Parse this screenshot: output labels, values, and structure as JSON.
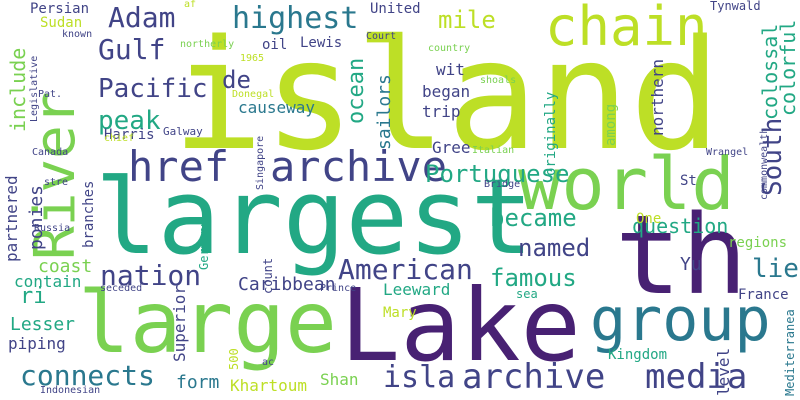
{
  "palette": {
    "lime": "#bddf26",
    "green": "#7ad151",
    "teal": "#22a884",
    "blue": "#2a788e",
    "indigo": "#414487",
    "purple": "#482173",
    "dark": "#440154"
  },
  "words": [
    "island",
    "largest",
    "large",
    "Lake",
    "th",
    "world",
    "chain",
    "group",
    "River",
    "archive",
    "href",
    "archive",
    "media",
    "isla",
    "connects",
    "American",
    "nation",
    "highest",
    "Adam",
    "Gulf",
    "Pacific",
    "peak",
    "de",
    "mile",
    "Portuguese",
    "became",
    "named",
    "famous",
    "South",
    "colossal",
    "colorful",
    "question",
    "ocean",
    "sailors",
    "include",
    "partnered",
    "ponies",
    "Caribbean",
    "Leeward",
    "Lesser",
    "piping",
    "coast",
    "contain",
    "form",
    "Khartoum",
    "Shan",
    "Mary",
    "Superior",
    "Kingdom",
    "France",
    "regions",
    "lie",
    "Yu",
    "level",
    "Mediterranea",
    "causeway",
    "trip",
    "began",
    "wit",
    "Gree",
    "among",
    "originally",
    "northern",
    "Persian",
    "Sudan",
    "United",
    "Court",
    "country",
    "Tynwald",
    "known",
    "af",
    "northerly",
    "oil",
    "Lewis",
    "Harris",
    "Galway",
    "Donegal",
    "1965",
    "ac",
    "Singapore",
    "chief",
    "Canada",
    "stre",
    "Russia",
    "branches",
    "Germany",
    "count",
    "seceded",
    "Prince",
    "Indonesian",
    "500",
    "Italian",
    "Bridge",
    "Wrangel",
    "St",
    "One",
    "sea",
    "shoals",
    "commonwealth",
    "Pat.",
    "Legislative",
    "ri"
  ]
}
